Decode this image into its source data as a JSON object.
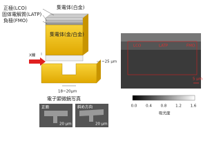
{
  "schematic": {
    "labels": {
      "cathode": "正極(LCO)",
      "electrolyte": "固体電解質(LATP)",
      "anode": "負極(FMO)",
      "collector_top": "集電体(白金)",
      "collector_gold": "集電体(金/白金)",
      "xray": "X線",
      "thickness": "~25 μm",
      "width": "18~20μm"
    }
  },
  "sem": {
    "title": "電子顕微鏡写真",
    "images": [
      {
        "label": "正面",
        "scale": "20 μm"
      },
      {
        "label": "斜め方向",
        "scale": "20 μm"
      }
    ]
  },
  "xray_image": {
    "layers": [
      "LCO",
      "LATP",
      "FMO"
    ],
    "scale": "5 μm",
    "colorbar": {
      "ticks": [
        "0.0",
        "0.4",
        "0.8",
        "1.2",
        "1.6"
      ],
      "label": "吸光度"
    }
  }
}
